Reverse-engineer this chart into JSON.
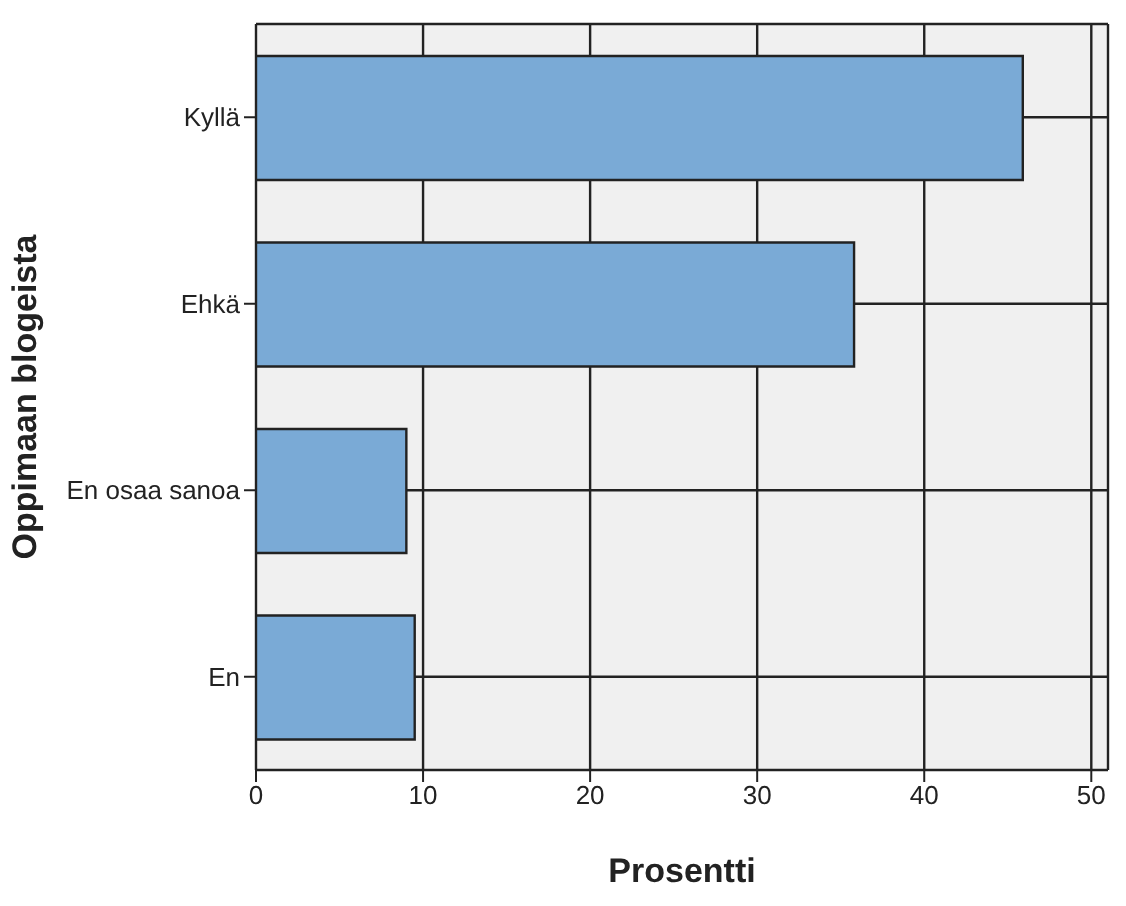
{
  "chart_data": {
    "type": "bar",
    "orientation": "horizontal",
    "xlabel": "Prosentti",
    "ylabel": "Oppimaan blogeista",
    "categories": [
      "Kyllä",
      "Ehkä",
      "En osaa sanoa",
      "En"
    ],
    "values": [
      45.9,
      35.8,
      9.0,
      9.5
    ],
    "color": "#7aaad6",
    "xlim": [
      0,
      51
    ],
    "xticks": [
      0,
      10,
      20,
      30,
      40,
      50
    ],
    "grid": true
  }
}
